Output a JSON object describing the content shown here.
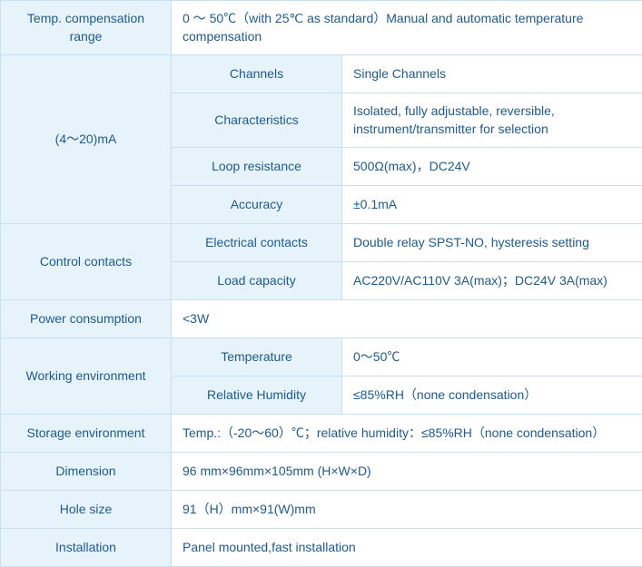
{
  "colors": {
    "header_bg": "#e6f3fb",
    "border": "#c9e0ef",
    "text": "#1e5a8e",
    "value_bg": "#ffffff"
  },
  "table": {
    "temp_comp_range": {
      "label": "Temp. compensation range",
      "value": "0 ～ 50℃（with 25℃ as standard）Manual and automatic temperature compensation"
    },
    "ma_section": {
      "label": "(4～20)mA",
      "channels": {
        "label": "Channels",
        "value": "Single Channels"
      },
      "characteristics": {
        "label": "Characteristics",
        "value": "  Isolated, fully adjustable, reversible, instrument/transmitter for selection"
      },
      "loop_resistance": {
        "label": "Loop resistance",
        "value": "500Ω(max)，DC24V"
      },
      "accuracy": {
        "label": "Accuracy",
        "value": "±0.1mA"
      }
    },
    "control_contacts": {
      "label": "Control contacts",
      "electrical": {
        "label": "Electrical contacts",
        "value": "Double relay SPST-NO, hysteresis setting"
      },
      "load": {
        "label": "Load capacity",
        "value": "AC220V/AC110V 3A(max)；DC24V 3A(max)"
      }
    },
    "power_consumption": {
      "label": "Power consumption",
      "value": "<3W"
    },
    "working_env": {
      "label": "Working environment",
      "temperature": {
        "label": "Temperature",
        "value": "0～50℃"
      },
      "humidity": {
        "label": "Relative Humidity",
        "value": "≤85%RH（none condensation）"
      }
    },
    "storage_env": {
      "label": "Storage environment",
      "value": "Temp.:（-20～60）℃；relative humidity：≤85%RH（none condensation）"
    },
    "dimension": {
      "label": "Dimension",
      "value": "96 mm×96mm×105mm (H×W×D)"
    },
    "hole_size": {
      "label": "Hole size",
      "value": "91（H）mm×91(W)mm"
    },
    "installation": {
      "label": "Installation",
      "value": "Panel mounted,fast installation"
    }
  }
}
